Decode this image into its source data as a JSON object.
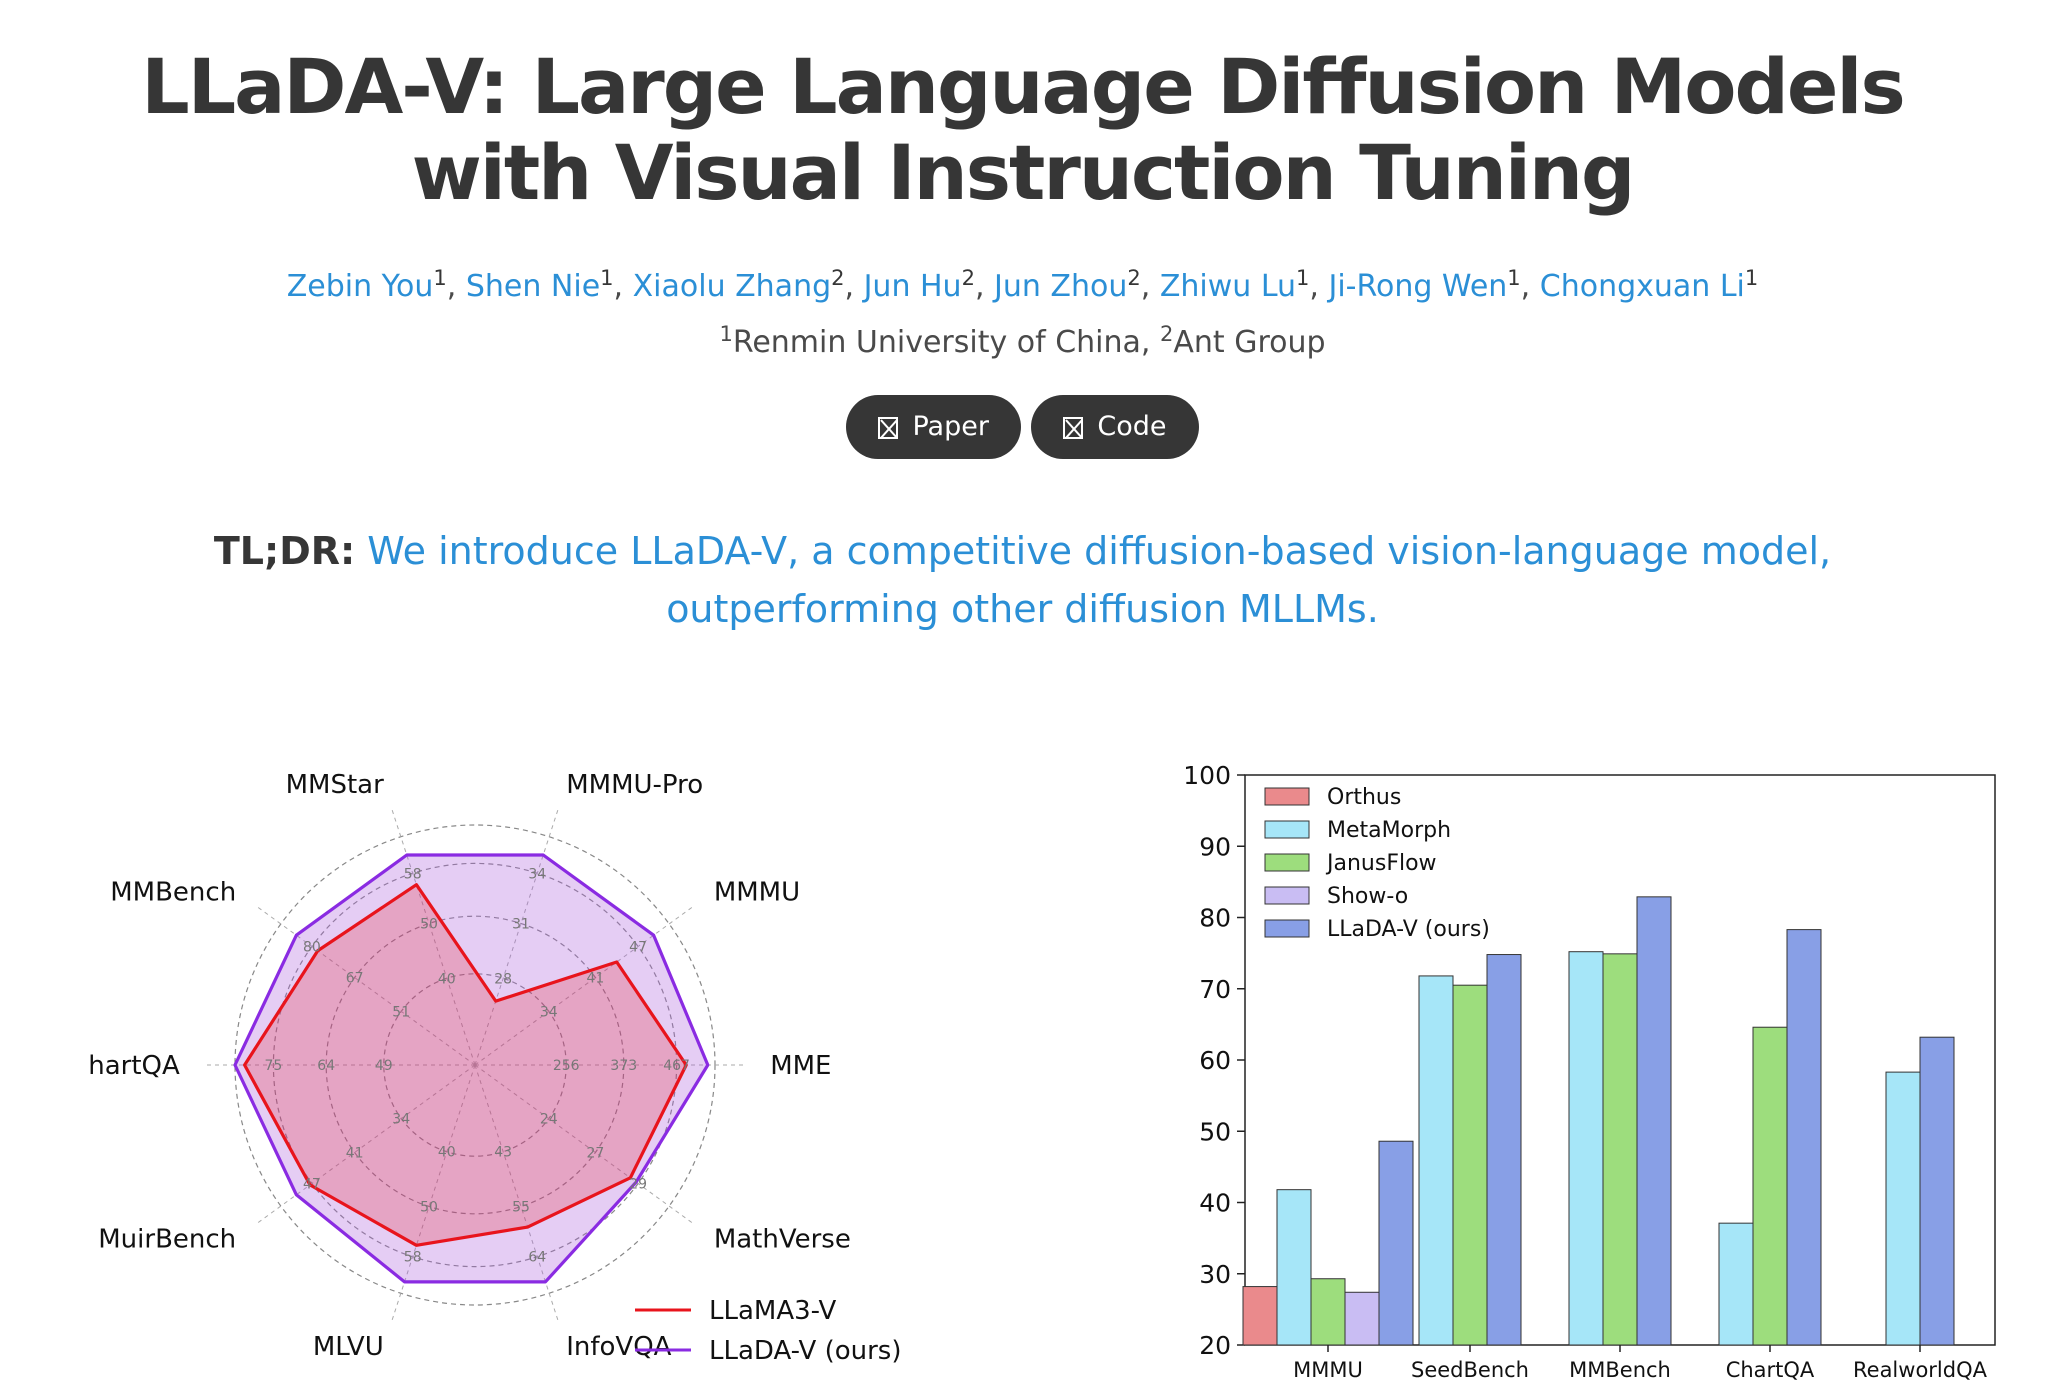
{
  "title": {
    "line1": "LLaDA-V: Large Language Diffusion Models",
    "line2": "with Visual Instruction Tuning"
  },
  "authors": [
    {
      "name": "Zebin You",
      "aff": "1"
    },
    {
      "name": "Shen Nie",
      "aff": "1"
    },
    {
      "name": "Xiaolu Zhang",
      "aff": "2"
    },
    {
      "name": "Jun Hu",
      "aff": "2"
    },
    {
      "name": "Jun Zhou",
      "aff": "2"
    },
    {
      "name": "Zhiwu Lu",
      "aff": "1"
    },
    {
      "name": "Ji-Rong Wen",
      "aff": "1"
    },
    {
      "name": "Chongxuan Li",
      "aff": "1"
    }
  ],
  "affiliations": [
    {
      "num": "1",
      "name": "Renmin University of China"
    },
    {
      "num": "2",
      "name": "Ant Group"
    }
  ],
  "buttons": {
    "paper": "Paper",
    "code": "Code"
  },
  "tldr": {
    "label": "TL;DR:",
    "line1": "We introduce LLaDA-V, a competitive diffusion-based vision-language model,",
    "line2": "outperforming other diffusion MLLMs."
  },
  "colors": {
    "link": "#2b8fd6",
    "llama": "#e8141c",
    "llada": "#8a2be2"
  },
  "chart_data": [
    {
      "type": "radar",
      "axes": [
        "MMStar",
        "MMMU-Pro",
        "MMMU",
        "MME",
        "MathVerse",
        "InfoVQA",
        "MLVU",
        "MuirBench",
        "ChartQA",
        "MMBench"
      ],
      "ticks": [
        [
          "40",
          "50",
          "58"
        ],
        [
          "28",
          "31",
          "34"
        ],
        [
          "34",
          "41",
          "47"
        ],
        [
          "256",
          "373",
          "467"
        ],
        [
          "24",
          "27",
          "29"
        ],
        [
          "43",
          "55",
          "64"
        ],
        [
          "40",
          "50",
          "58"
        ],
        [
          "34",
          "41",
          "47"
        ],
        [
          "49",
          "64",
          "75"
        ],
        [
          "51",
          "67",
          "80"
        ]
      ],
      "tick_radii": [
        0.38,
        0.62,
        0.84
      ],
      "series": [
        {
          "name": "LLaMA3-V",
          "values": [
            0.79,
            0.28,
            0.73,
            0.88,
            0.8,
            0.71,
            0.79,
            0.85,
            0.96,
            0.81
          ]
        },
        {
          "name": "LLaDA-V (ours)",
          "values": [
            0.92,
            0.92,
            0.92,
            0.97,
            0.83,
            0.95,
            0.95,
            0.92,
            1.0,
            0.92
          ]
        }
      ],
      "legend_position": "bottom-right"
    },
    {
      "type": "bar",
      "categories": [
        "MMMU",
        "SeedBench",
        "MMBench",
        "ChartQA",
        "RealworldQA"
      ],
      "series": [
        {
          "name": "Orthus",
          "color": "#ea8a8c",
          "values": [
            28.2,
            null,
            null,
            null,
            null
          ]
        },
        {
          "name": "MetaMorph",
          "color": "#a6e6f8",
          "values": [
            41.8,
            71.8,
            75.2,
            37.1,
            58.3
          ]
        },
        {
          "name": "JanusFlow",
          "color": "#9ddd7d",
          "values": [
            29.3,
            70.5,
            74.9,
            64.6,
            null
          ]
        },
        {
          "name": "Show-o",
          "color": "#c9bdf3",
          "values": [
            27.4,
            null,
            null,
            null,
            null
          ]
        },
        {
          "name": "LLaDA-V (ours)",
          "color": "#889fe6",
          "values": [
            48.6,
            74.8,
            82.9,
            78.3,
            63.2
          ]
        }
      ],
      "ylim": [
        20,
        100
      ],
      "yticks": [
        20,
        30,
        40,
        50,
        60,
        70,
        80,
        90,
        100
      ],
      "legend_position": "top-left"
    }
  ]
}
